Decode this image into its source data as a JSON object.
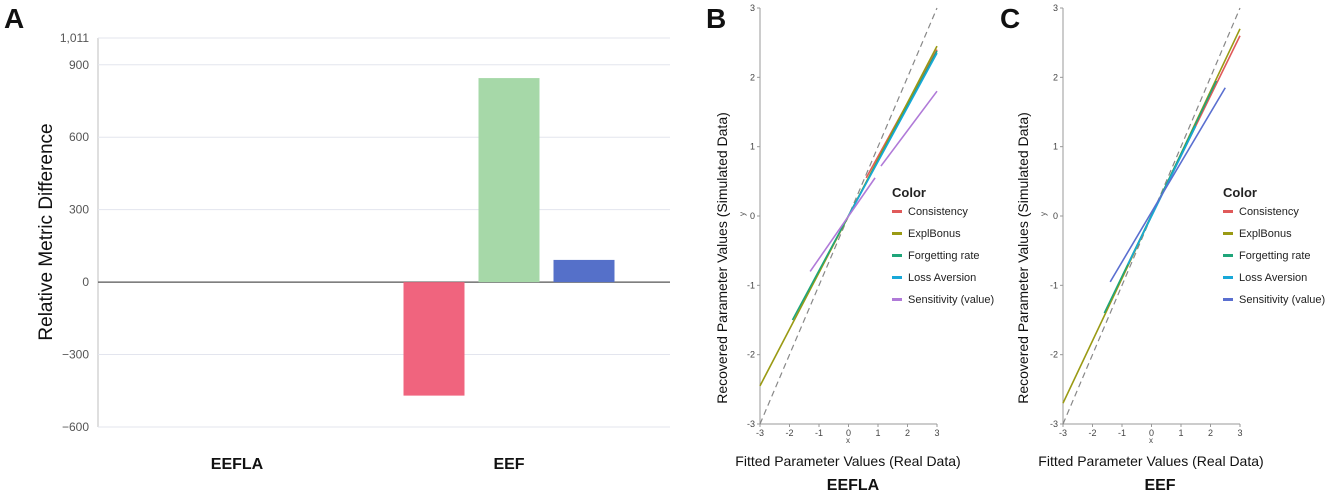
{
  "chart_data": [
    {
      "panel": "A",
      "type": "bar",
      "ylabel": "Relative Metric Difference",
      "ylim": [
        -600,
        1011
      ],
      "yticks": [
        -600,
        -300,
        0,
        300,
        600,
        900,
        1011
      ],
      "ytick_labels": [
        "−600",
        "−300",
        "0",
        "300",
        "600",
        "900",
        "1,011"
      ],
      "categories": [
        "EEFLA",
        "EEF"
      ],
      "series": [
        {
          "name": "red",
          "color": "#f0647e",
          "values": [
            0,
            -470
          ]
        },
        {
          "name": "green",
          "color": "#a6d8a8",
          "values": [
            0,
            845
          ]
        },
        {
          "name": "blue",
          "color": "#5570c9",
          "values": [
            0,
            92
          ]
        }
      ]
    },
    {
      "panel": "B",
      "type": "line",
      "model": "EEFLA",
      "xlabel": "Fitted Parameter Values (Real Data)",
      "ylabel": "Recovered Parameter Values (Simulated Data)",
      "x_small_label": "x",
      "y_small_label": "y",
      "xlim": [
        -3,
        3
      ],
      "ylim": [
        -3,
        3
      ],
      "ticks": [
        -3,
        -2,
        -1,
        0,
        1,
        2,
        3
      ],
      "legend_title": "Color",
      "identity_line": {
        "from": [
          -3,
          -3
        ],
        "to": [
          3,
          3
        ],
        "style": "dashed"
      },
      "series": [
        {
          "name": "Consistency",
          "color": "#e05a5a",
          "x": [
            0.6,
            3.0
          ],
          "y": [
            0.55,
            2.4
          ]
        },
        {
          "name": "ExplBonus",
          "color": "#9a9a14",
          "x": [
            -3.0,
            3.0
          ],
          "y": [
            -2.45,
            2.45
          ]
        },
        {
          "name": "Forgetting rate",
          "color": "#1fa57a",
          "x": [
            -1.9,
            3.0
          ],
          "y": [
            -1.5,
            2.38
          ]
        },
        {
          "name": "Loss Aversion",
          "color": "#18a8d8",
          "x": [
            0.0,
            3.0
          ],
          "y": [
            0.0,
            2.35
          ]
        },
        {
          "name": "Sensitivity (value)",
          "color": "#b07ad8",
          "x": [
            -1.3,
            0.9,
            1.1,
            3.0
          ],
          "y": [
            -0.8,
            0.55,
            0.72,
            1.8
          ],
          "segments": [
            [
              0,
              1
            ],
            [
              2,
              3
            ]
          ]
        }
      ]
    },
    {
      "panel": "C",
      "type": "line",
      "model": "EEF",
      "xlabel": "Fitted Parameter Values (Real Data)",
      "ylabel": "Recovered Parameter Values (Simulated Data)",
      "x_small_label": "x",
      "y_small_label": "y",
      "xlim": [
        -3,
        3
      ],
      "ylim": [
        -3,
        3
      ],
      "ticks": [
        -3,
        -2,
        -1,
        0,
        1,
        2,
        3
      ],
      "legend_title": "Color",
      "identity_line": {
        "from": [
          -3,
          -3
        ],
        "to": [
          3,
          3
        ],
        "style": "dashed"
      },
      "series": [
        {
          "name": "Consistency",
          "color": "#e05a5a",
          "x": [
            0.0,
            3.0
          ],
          "y": [
            0.0,
            2.6
          ]
        },
        {
          "name": "ExplBonus",
          "color": "#9a9a14",
          "x": [
            -3.0,
            3.0
          ],
          "y": [
            -2.7,
            2.7
          ]
        },
        {
          "name": "Forgetting rate",
          "color": "#1fa57a",
          "x": [
            -1.6,
            2.2
          ],
          "y": [
            -1.4,
            1.95
          ]
        },
        {
          "name": "Loss Aversion",
          "color": "#18a8d8",
          "x": [
            -0.8,
            1.5
          ],
          "y": [
            -0.7,
            1.3
          ]
        },
        {
          "name": "Sensitivity (value)",
          "color": "#5a6fd0",
          "x": [
            -1.4,
            2.5
          ],
          "y": [
            -0.95,
            1.85
          ]
        }
      ]
    }
  ]
}
